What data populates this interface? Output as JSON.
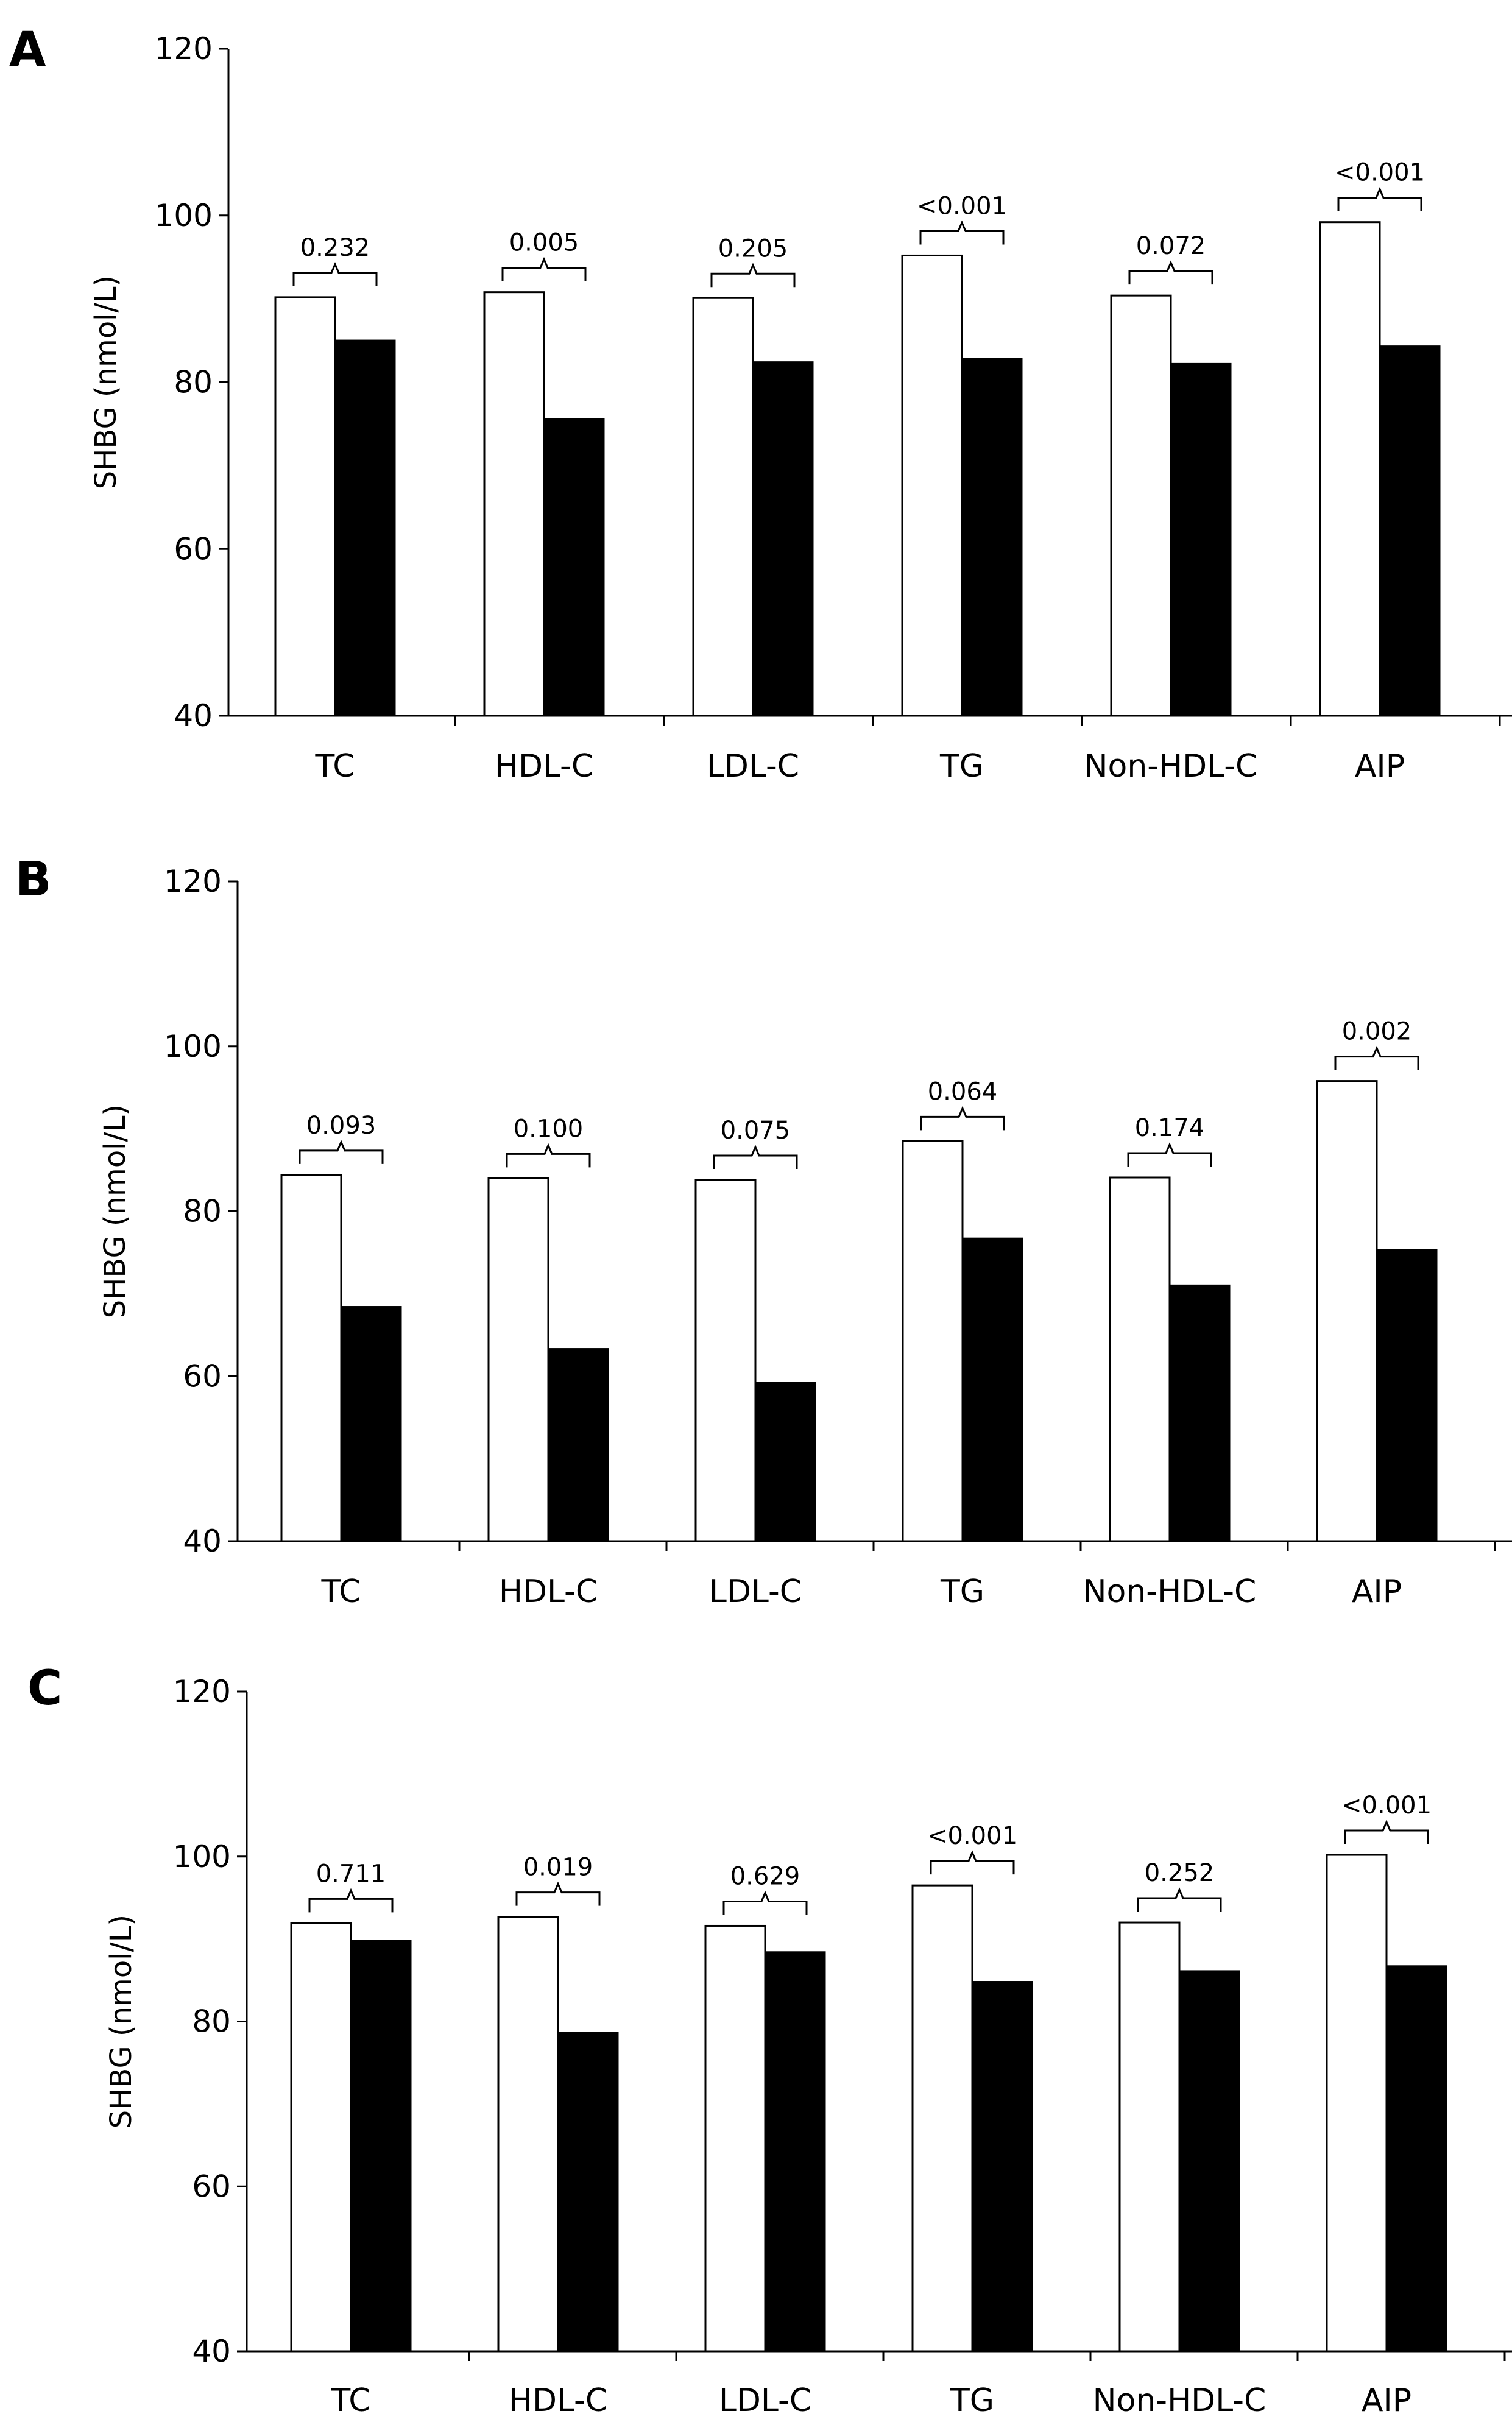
{
  "chart_data": [
    {
      "panel": "A",
      "type": "bar",
      "ylabel": "SHBG (nmol/L)",
      "xlabel": "",
      "ylim": [
        40,
        120
      ],
      "yticks": [
        "40",
        "60",
        "80",
        "100",
        "120"
      ],
      "categories": [
        "TC",
        "HDL-C",
        "LDL-C",
        "TG",
        "Non-HDL-C",
        "AIP"
      ],
      "series": [
        {
          "name": "open",
          "values": [
            90.2,
            90.8,
            90.1,
            95.2,
            90.4,
            99.2
          ]
        },
        {
          "name": "filled",
          "values": [
            85.0,
            75.6,
            82.4,
            82.8,
            82.2,
            84.3
          ]
        }
      ],
      "p_values": [
        "0.232",
        "0.005",
        "0.205",
        "<0.001",
        "0.072",
        "<0.001"
      ]
    },
    {
      "panel": "B",
      "type": "bar",
      "ylabel": "SHBG (nmol/L)",
      "xlabel": "",
      "ylim": [
        40,
        120
      ],
      "yticks": [
        "40",
        "60",
        "80",
        "100",
        "120"
      ],
      "categories": [
        "TC",
        "HDL-C",
        "LDL-C",
        "TG",
        "Non-HDL-C",
        "AIP"
      ],
      "series": [
        {
          "name": "open",
          "values": [
            84.4,
            84.0,
            83.8,
            88.5,
            84.1,
            95.8
          ]
        },
        {
          "name": "filled",
          "values": [
            68.4,
            63.3,
            59.2,
            76.7,
            71.0,
            75.3
          ]
        }
      ],
      "p_values": [
        "0.093",
        "0.100",
        "0.075",
        "0.064",
        "0.174",
        "0.002"
      ]
    },
    {
      "panel": "C",
      "type": "bar",
      "ylabel": "SHBG (nmol/L)",
      "xlabel": "",
      "ylim": [
        40,
        120
      ],
      "yticks": [
        "40",
        "60",
        "80",
        "100",
        "120"
      ],
      "categories": [
        "TC",
        "HDL-C",
        "LDL-C",
        "TG",
        "Non-HDL-C",
        "AIP"
      ],
      "series": [
        {
          "name": "open",
          "values": [
            91.9,
            92.7,
            91.6,
            96.5,
            92.0,
            100.2
          ]
        },
        {
          "name": "filled",
          "values": [
            89.8,
            78.6,
            88.4,
            84.8,
            86.1,
            86.7
          ]
        }
      ],
      "p_values": [
        "0.711",
        "0.019",
        "0.629",
        "<0.001",
        "0.252",
        "<0.001"
      ]
    }
  ]
}
